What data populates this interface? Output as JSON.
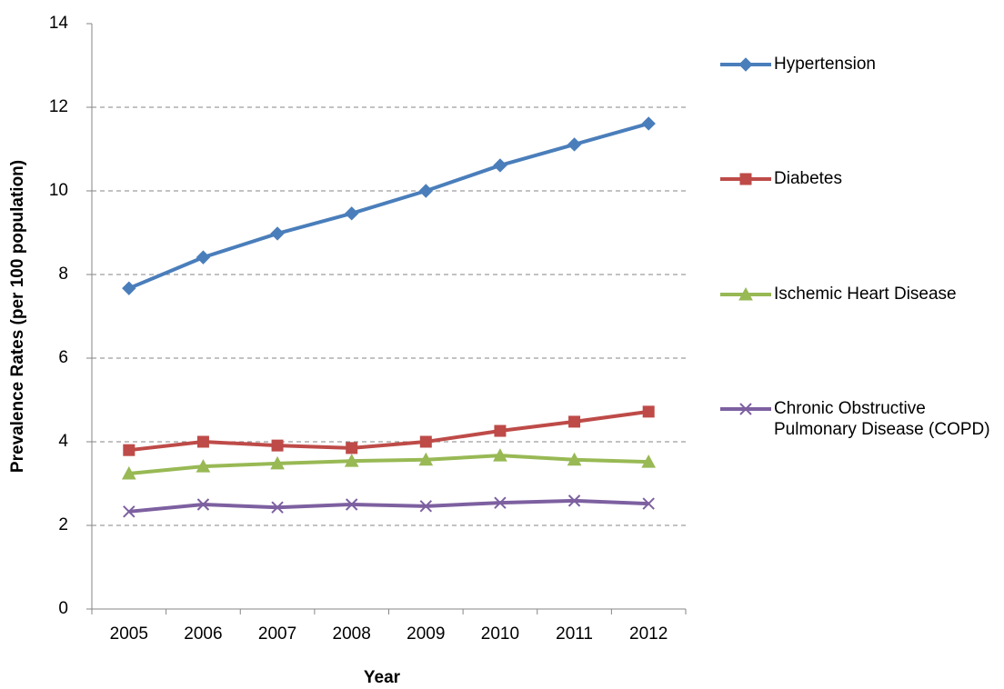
{
  "chart_data": {
    "type": "line",
    "x_label": "Year",
    "y_label": "Prevalence Rates (per 100 population)",
    "categories": [
      "2005",
      "2006",
      "2007",
      "2008",
      "2009",
      "2010",
      "2011",
      "2012"
    ],
    "series": [
      {
        "name": "Hypertension",
        "color": "#4a7ebb",
        "marker": "diamond",
        "values": [
          7.67,
          8.41,
          8.98,
          9.46,
          10.0,
          10.61,
          11.11,
          11.61
        ]
      },
      {
        "name": "Diabetes",
        "color": "#be4b48",
        "marker": "square",
        "values": [
          3.8,
          4.0,
          3.91,
          3.85,
          4.0,
          4.26,
          4.48,
          4.72
        ]
      },
      {
        "name": "Ischemic Heart Disease",
        "color": "#98b954",
        "marker": "triangle",
        "values": [
          3.24,
          3.41,
          3.48,
          3.54,
          3.57,
          3.67,
          3.57,
          3.52
        ]
      },
      {
        "name": "Chronic Obstructive Pulmonary Disease (COPD)",
        "color": "#7d60a0",
        "marker": "x",
        "values": [
          2.33,
          2.5,
          2.43,
          2.5,
          2.46,
          2.54,
          2.59,
          2.52
        ]
      }
    ],
    "ylim": [
      0,
      14
    ],
    "yticks": [
      0,
      2,
      4,
      6,
      8,
      10,
      12,
      14
    ],
    "grid": true
  }
}
